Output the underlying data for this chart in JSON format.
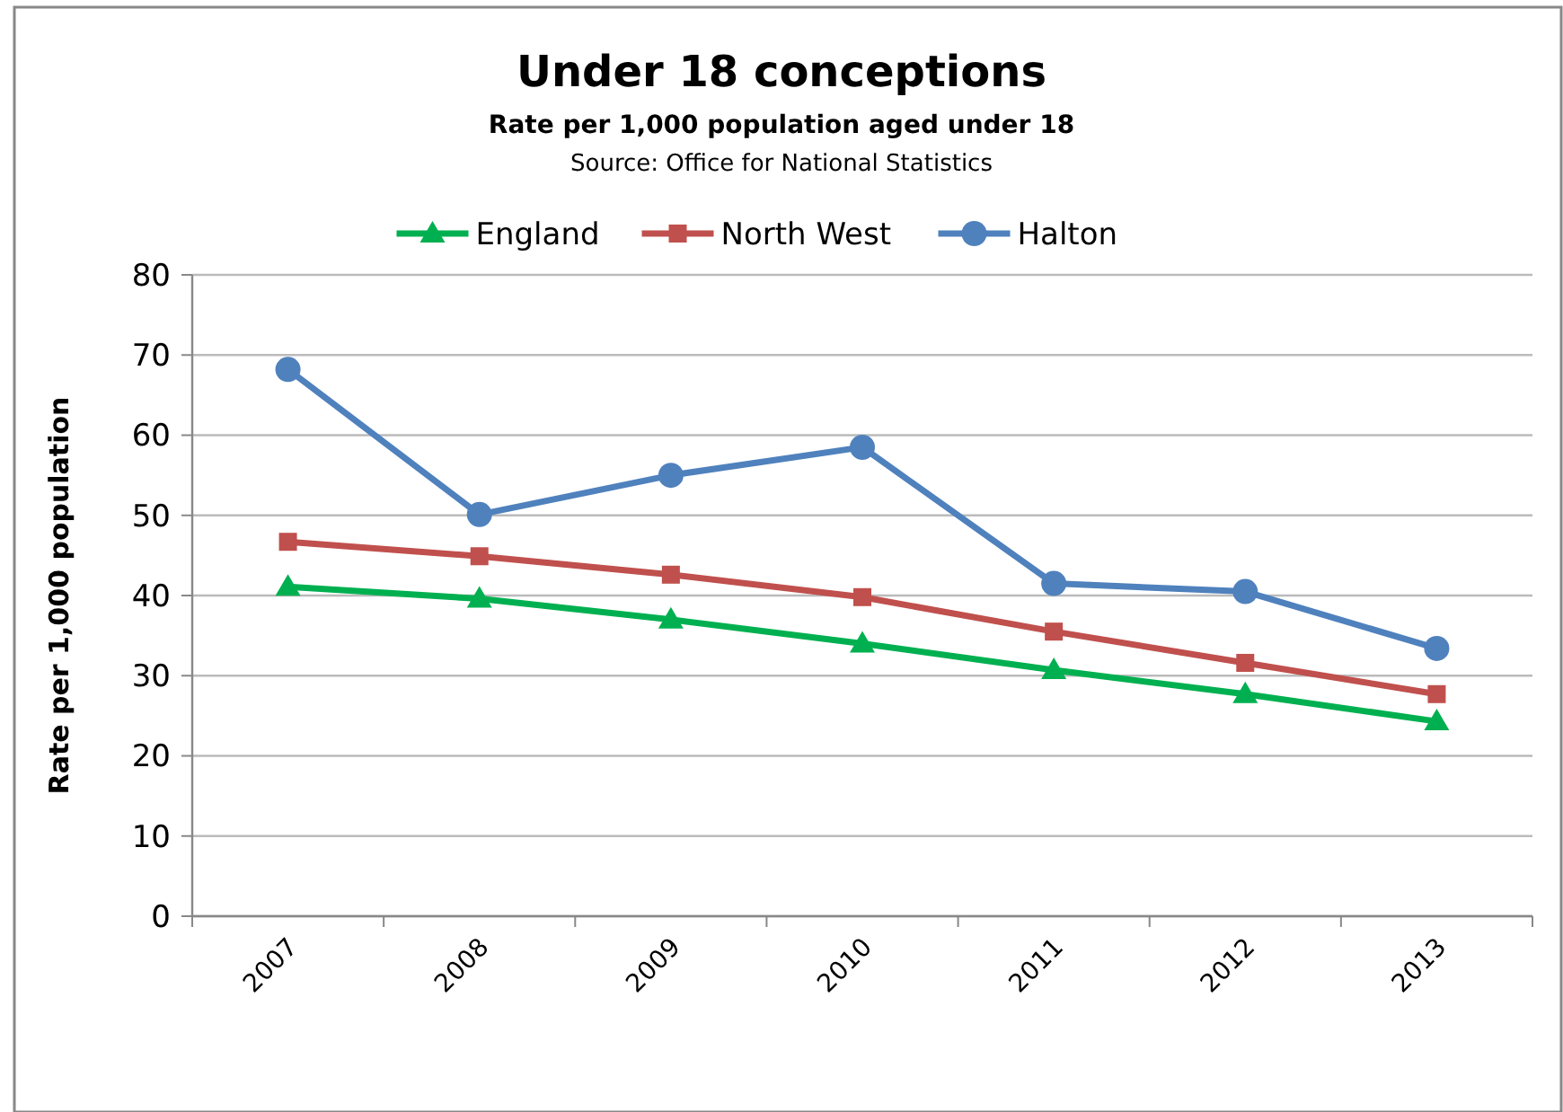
{
  "chart_data": {
    "type": "line",
    "title": "Under 18 conceptions",
    "subtitle": "Rate per 1,000 population aged under 18",
    "annotations": [
      "Source: Office for National Statistics"
    ],
    "ylabel": "Rate per 1,000 population",
    "categories": [
      "2007",
      "2008",
      "2009",
      "2010",
      "2011",
      "2012",
      "2013"
    ],
    "series": [
      {
        "name": "England",
        "color": "#00b050",
        "marker": "triangle",
        "values": [
          41.1,
          39.6,
          37.0,
          34.0,
          30.7,
          27.7,
          24.3
        ]
      },
      {
        "name": "North West",
        "color": "#c0504d",
        "marker": "square",
        "values": [
          46.7,
          44.9,
          42.6,
          39.8,
          35.5,
          31.6,
          27.7
        ]
      },
      {
        "name": "Halton",
        "color": "#4f81bd",
        "marker": "circle",
        "values": [
          68.2,
          50.1,
          55.0,
          58.5,
          41.5,
          40.5,
          33.4
        ]
      }
    ],
    "ylim": [
      0,
      80
    ],
    "yticks": [
      0,
      10,
      20,
      30,
      40,
      50,
      60,
      70,
      80
    ],
    "grid": "y",
    "legend": "top"
  }
}
